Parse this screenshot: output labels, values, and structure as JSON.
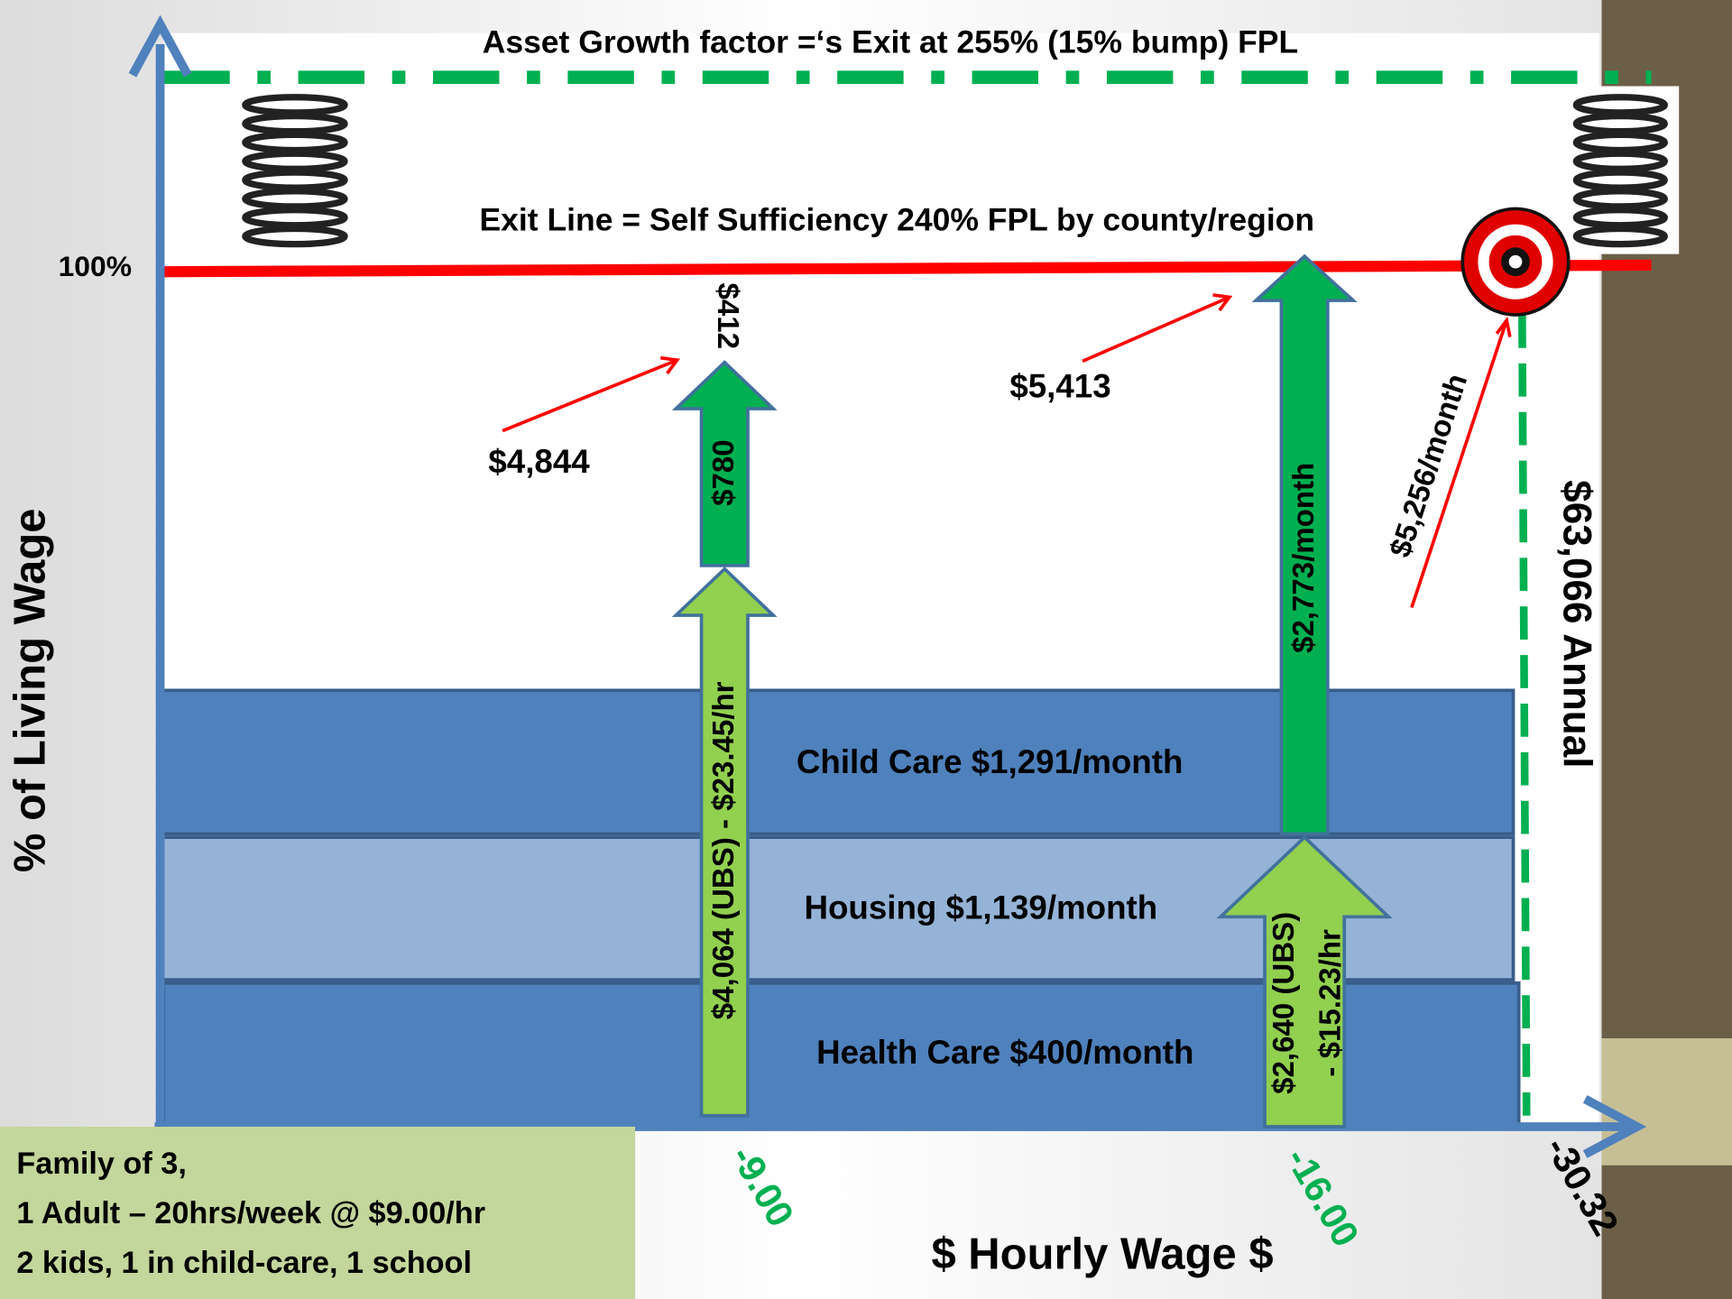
{
  "header": {
    "top_line": "Asset Growth factor =‘s Exit at 255% (15% bump) FPL",
    "exit_line": "Exit Line = Self Sufficiency 240% FPL by county/region"
  },
  "axes": {
    "y_title": "% of Living Wage",
    "y_mark": "100%",
    "x_title": "$ Hourly Wage $",
    "x_labels": [
      "-9.00",
      "-16.00",
      "-30.32"
    ]
  },
  "bands": [
    "Child Care $1,291/month",
    "Housing $1,139/month",
    "Health Care $400/month"
  ],
  "arrows": {
    "ubs_low": "$4,064 (UBS) - $23.45/hr",
    "gain_low": "$780",
    "gap_low": "$412",
    "total_low": "$4,844",
    "total_high": "$5,413",
    "gain_high": "$2,773/month",
    "ubs_high": [
      "$2,640 (UBS)",
      "- $15.23/hr"
    ],
    "target": "$5,256/month",
    "annual": "$63,066 Annual"
  },
  "info_box": [
    "Family of 3,",
    "1 Adult – 20hrs/week @ $9.00/hr",
    "2 kids, 1 in child-care, 1 school"
  ]
}
